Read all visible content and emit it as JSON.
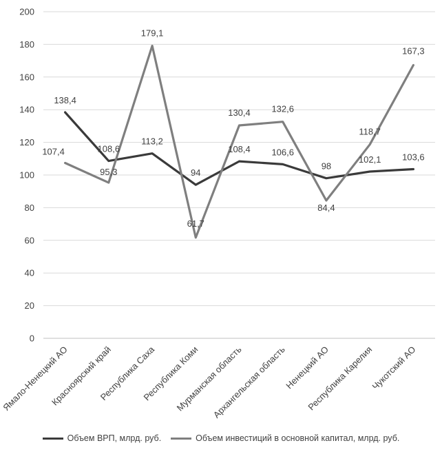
{
  "chart_data": {
    "type": "line",
    "title": "",
    "xlabel": "",
    "ylabel": "",
    "ylim": [
      0,
      200
    ],
    "yticks": [
      0,
      20,
      40,
      60,
      80,
      100,
      120,
      140,
      160,
      180,
      200
    ],
    "grid": true,
    "legend_position": "bottom",
    "categories": [
      "Ямало-Ненецкий АО",
      "Красноярский край",
      "Республика Саха",
      "Республика Коми",
      "Мурманская область",
      "Архангельская область",
      "Ненецкий АО",
      "Республика Карелия",
      "Чукотский АО"
    ],
    "series": [
      {
        "name": "Объем ВРП, млрд. руб.",
        "color": "#3a3a3a",
        "values": [
          138.4,
          108.6,
          113.2,
          94,
          108.4,
          106.6,
          98,
          102.1,
          103.6
        ],
        "labels": [
          "138,4",
          "108,6",
          "113,2",
          "94",
          "108,4",
          "106,6",
          "98",
          "102,1",
          "103,6"
        ]
      },
      {
        "name": "Объем инвестиций в основной капитал, млрд. руб.",
        "color": "#7f7f7f",
        "values": [
          107.4,
          95.3,
          179.1,
          61.7,
          130.4,
          132.6,
          84.4,
          118.7,
          167.3
        ],
        "labels": [
          "107,4",
          "95,3",
          "179,1",
          "61,7",
          "130,4",
          "132,6",
          "84,4",
          "118,7",
          "167,3"
        ]
      }
    ]
  },
  "legend": {
    "items": [
      {
        "label": "Объем ВРП, млрд. руб.",
        "color": "#3a3a3a"
      },
      {
        "label": "Объем инвестиций в основной капитал, млрд. руб.",
        "color": "#7f7f7f"
      }
    ]
  }
}
